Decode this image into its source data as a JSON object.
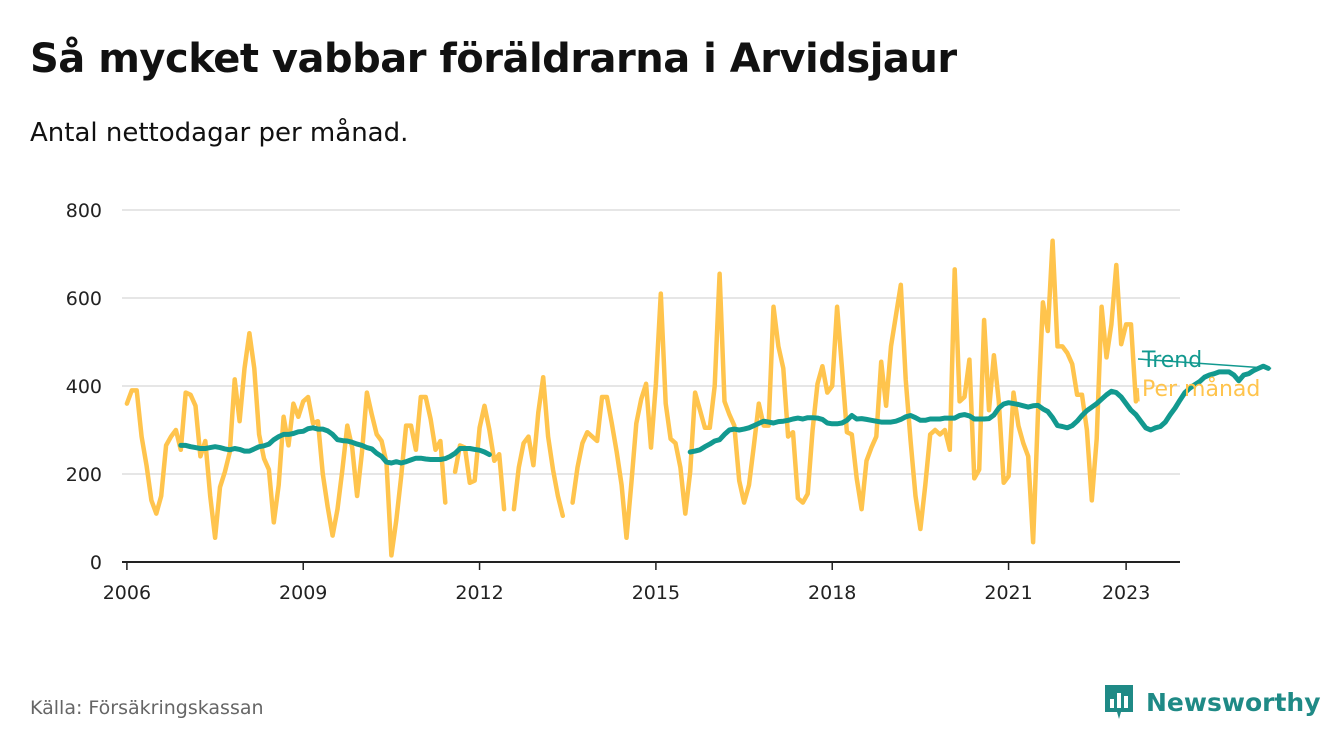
{
  "title": "Så mycket vabbar föräldrarna i Arvidsjaur",
  "subtitle": "Antal nettodagar per månad.",
  "source": "Källa: Försäkringskassan",
  "brand": "Newsworthy",
  "colors": {
    "monthly": "#ffc44d",
    "trend": "#12998f",
    "grid": "#dddddd",
    "axis": "#222222",
    "brand": "#1f8a86"
  },
  "chart_data": {
    "type": "line",
    "ylim": [
      0,
      800
    ],
    "yticks": [
      0,
      200,
      400,
      600,
      800
    ],
    "xlim": [
      "2005-12",
      "2023-12"
    ],
    "xticks": [
      {
        "label": "2006",
        "value": "2006-01"
      },
      {
        "label": "2009",
        "value": "2009-01"
      },
      {
        "label": "2012",
        "value": "2012-01"
      },
      {
        "label": "2015",
        "value": "2015-01"
      },
      {
        "label": "2018",
        "value": "2018-01"
      },
      {
        "label": "2021",
        "value": "2021-01"
      },
      {
        "label": "2023",
        "value": "2023-01"
      }
    ],
    "series": [
      {
        "name": "Per månad",
        "start": "2006-01",
        "values": [
          360,
          390,
          390,
          285,
          220,
          140,
          110,
          150,
          265,
          285,
          300,
          255,
          385,
          380,
          355,
          240,
          275,
          150,
          55,
          170,
          205,
          250,
          415,
          320,
          440,
          520,
          440,
          290,
          235,
          210,
          90,
          175,
          330,
          265,
          360,
          330,
          365,
          375,
          315,
          320,
          200,
          125,
          60,
          120,
          210,
          310,
          260,
          150,
          250,
          385,
          335,
          290,
          275,
          225,
          15,
          95,
          195,
          310,
          310,
          255,
          375,
          375,
          325,
          255,
          275,
          135,
          null,
          205,
          265,
          260,
          180,
          185,
          305,
          355,
          300,
          230,
          245,
          120,
          null,
          120,
          215,
          270,
          285,
          220,
          340,
          420,
          285,
          210,
          150,
          105,
          null,
          135,
          215,
          270,
          295,
          285,
          275,
          375,
          375,
          315,
          250,
          175,
          55,
          180,
          315,
          370,
          405,
          260,
          405,
          610,
          360,
          280,
          270,
          215,
          110,
          205,
          385,
          345,
          305,
          305,
          400,
          655,
          365,
          335,
          310,
          185,
          135,
          175,
          265,
          360,
          310,
          310,
          580,
          490,
          440,
          285,
          295,
          145,
          135,
          155,
          300,
          405,
          445,
          385,
          400,
          580,
          440,
          295,
          290,
          190,
          120,
          230,
          260,
          285,
          455,
          355,
          490,
          560,
          630,
          415,
          275,
          150,
          75,
          175,
          290,
          300,
          290,
          300,
          255,
          665,
          365,
          375,
          460,
          190,
          210,
          550,
          345,
          470,
          365,
          180,
          195,
          385,
          310,
          270,
          240,
          45,
          340,
          590,
          525,
          730,
          490,
          490,
          475,
          450,
          380,
          380,
          300,
          140,
          280,
          580,
          465,
          540,
          675,
          495,
          540,
          540,
          365
        ]
      },
      {
        "name": "Trend",
        "start": "2006-12",
        "values": [
          265,
          265,
          262,
          260,
          258,
          258,
          260,
          262,
          260,
          257,
          255,
          258,
          256,
          252,
          252,
          257,
          262,
          264,
          268,
          278,
          285,
          290,
          290,
          292,
          296,
          297,
          303,
          305,
          302,
          302,
          298,
          290,
          278,
          276,
          275,
          272,
          268,
          265,
          260,
          257,
          247,
          240,
          227,
          225,
          228,
          225,
          228,
          232,
          236,
          236,
          234,
          233,
          233,
          233,
          235,
          240,
          247,
          258,
          258,
          258,
          256,
          254,
          250,
          244,
          null,
          null,
          null,
          null,
          null,
          null,
          null,
          null,
          null,
          null,
          null,
          null,
          null,
          null,
          null,
          null,
          null,
          null,
          null,
          null,
          null,
          null,
          null,
          null,
          null,
          null,
          null,
          null,
          null,
          null,
          null,
          null,
          null,
          null,
          null,
          null,
          null,
          null,
          null,
          null,
          250,
          252,
          255,
          262,
          268,
          275,
          278,
          290,
          300,
          302,
          300,
          302,
          305,
          310,
          315,
          320,
          318,
          316,
          319,
          320,
          322,
          325,
          327,
          325,
          328,
          328,
          327,
          324,
          316,
          314,
          314,
          316,
          322,
          333,
          325,
          326,
          324,
          322,
          320,
          318,
          318,
          318,
          320,
          324,
          330,
          333,
          328,
          322,
          322,
          325,
          325,
          325,
          327,
          327,
          327,
          333,
          335,
          332,
          325,
          325,
          325,
          326,
          334,
          350,
          359,
          362,
          360,
          358,
          355,
          352,
          355,
          356,
          348,
          342,
          328,
          310,
          308,
          305,
          310,
          320,
          333,
          344,
          352,
          360,
          370,
          380,
          388,
          385,
          375,
          360,
          345,
          335,
          320,
          305,
          300,
          305,
          308,
          318,
          335,
          350,
          368,
          385,
          395,
          403,
          410,
          420,
          425,
          428,
          432,
          432,
          432,
          425,
          412,
          425,
          428,
          435,
          440,
          445,
          440
        ]
      }
    ]
  }
}
